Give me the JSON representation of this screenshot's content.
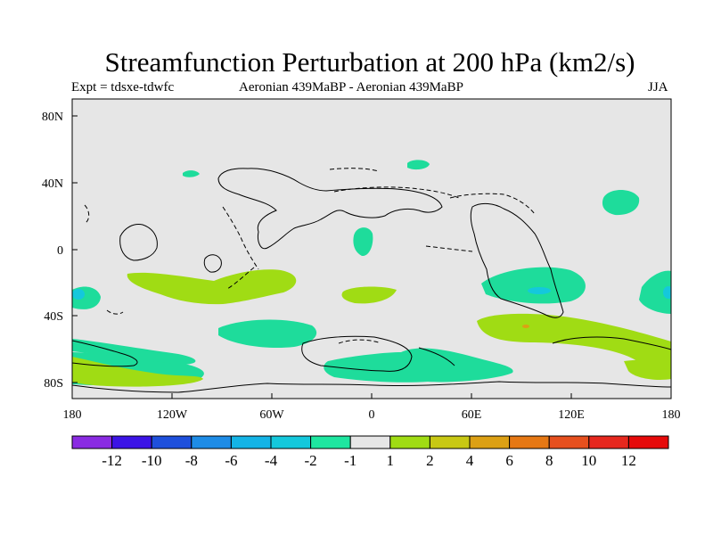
{
  "title": "Streamfunction Perturbation at 200 hPa (km2/s)",
  "subtitle_left": "Expt = tdsxe-tdwfc",
  "subtitle_center": "Aeronian 439MaBP - Aeronian 439MaBP",
  "subtitle_right": "JJA",
  "map": {
    "lat_ticks": [
      "80N",
      "40N",
      "0",
      "40S",
      "80S"
    ],
    "lon_ticks": [
      "180",
      "120W",
      "60W",
      "0",
      "60E",
      "120E",
      "180"
    ],
    "background_color": "#e6e6e6",
    "line_color": "#000000"
  },
  "colorbar": {
    "colors": [
      "#8a2be2",
      "#3c14e6",
      "#1e50dc",
      "#1e8ce6",
      "#14b4e6",
      "#14c8dc",
      "#1ee6a0",
      "#e6e6e6",
      "#a0dc14",
      "#c8c814",
      "#dca014",
      "#e67814",
      "#e6501e",
      "#e6281e",
      "#e60a0a"
    ],
    "labels": [
      "-12",
      "-10",
      "-8",
      "-6",
      "-4",
      "-2",
      "-1",
      "1",
      "2",
      "4",
      "6",
      "8",
      "10",
      "12"
    ]
  },
  "field_colors": {
    "green": "#1edc9b",
    "lime": "#a0dc14",
    "cyan": "#14c8dc",
    "amber": "#dca014"
  }
}
